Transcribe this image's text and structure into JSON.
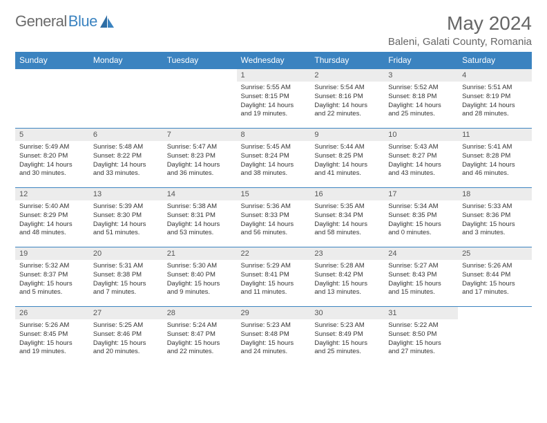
{
  "brand": {
    "name1": "General",
    "name2": "Blue"
  },
  "title": "May 2024",
  "location": "Baleni, Galati County, Romania",
  "colors": {
    "header_bg": "#3b83c0",
    "header_text": "#ffffff",
    "daynum_bg": "#ececec",
    "border": "#3b83c0",
    "text": "#333333",
    "muted": "#666666"
  },
  "day_labels": [
    "Sunday",
    "Monday",
    "Tuesday",
    "Wednesday",
    "Thursday",
    "Friday",
    "Saturday"
  ],
  "weeks": [
    [
      null,
      null,
      null,
      {
        "n": "1",
        "sr": "Sunrise: 5:55 AM",
        "ss": "Sunset: 8:15 PM",
        "d1": "Daylight: 14 hours",
        "d2": "and 19 minutes."
      },
      {
        "n": "2",
        "sr": "Sunrise: 5:54 AM",
        "ss": "Sunset: 8:16 PM",
        "d1": "Daylight: 14 hours",
        "d2": "and 22 minutes."
      },
      {
        "n": "3",
        "sr": "Sunrise: 5:52 AM",
        "ss": "Sunset: 8:18 PM",
        "d1": "Daylight: 14 hours",
        "d2": "and 25 minutes."
      },
      {
        "n": "4",
        "sr": "Sunrise: 5:51 AM",
        "ss": "Sunset: 8:19 PM",
        "d1": "Daylight: 14 hours",
        "d2": "and 28 minutes."
      }
    ],
    [
      {
        "n": "5",
        "sr": "Sunrise: 5:49 AM",
        "ss": "Sunset: 8:20 PM",
        "d1": "Daylight: 14 hours",
        "d2": "and 30 minutes."
      },
      {
        "n": "6",
        "sr": "Sunrise: 5:48 AM",
        "ss": "Sunset: 8:22 PM",
        "d1": "Daylight: 14 hours",
        "d2": "and 33 minutes."
      },
      {
        "n": "7",
        "sr": "Sunrise: 5:47 AM",
        "ss": "Sunset: 8:23 PM",
        "d1": "Daylight: 14 hours",
        "d2": "and 36 minutes."
      },
      {
        "n": "8",
        "sr": "Sunrise: 5:45 AM",
        "ss": "Sunset: 8:24 PM",
        "d1": "Daylight: 14 hours",
        "d2": "and 38 minutes."
      },
      {
        "n": "9",
        "sr": "Sunrise: 5:44 AM",
        "ss": "Sunset: 8:25 PM",
        "d1": "Daylight: 14 hours",
        "d2": "and 41 minutes."
      },
      {
        "n": "10",
        "sr": "Sunrise: 5:43 AM",
        "ss": "Sunset: 8:27 PM",
        "d1": "Daylight: 14 hours",
        "d2": "and 43 minutes."
      },
      {
        "n": "11",
        "sr": "Sunrise: 5:41 AM",
        "ss": "Sunset: 8:28 PM",
        "d1": "Daylight: 14 hours",
        "d2": "and 46 minutes."
      }
    ],
    [
      {
        "n": "12",
        "sr": "Sunrise: 5:40 AM",
        "ss": "Sunset: 8:29 PM",
        "d1": "Daylight: 14 hours",
        "d2": "and 48 minutes."
      },
      {
        "n": "13",
        "sr": "Sunrise: 5:39 AM",
        "ss": "Sunset: 8:30 PM",
        "d1": "Daylight: 14 hours",
        "d2": "and 51 minutes."
      },
      {
        "n": "14",
        "sr": "Sunrise: 5:38 AM",
        "ss": "Sunset: 8:31 PM",
        "d1": "Daylight: 14 hours",
        "d2": "and 53 minutes."
      },
      {
        "n": "15",
        "sr": "Sunrise: 5:36 AM",
        "ss": "Sunset: 8:33 PM",
        "d1": "Daylight: 14 hours",
        "d2": "and 56 minutes."
      },
      {
        "n": "16",
        "sr": "Sunrise: 5:35 AM",
        "ss": "Sunset: 8:34 PM",
        "d1": "Daylight: 14 hours",
        "d2": "and 58 minutes."
      },
      {
        "n": "17",
        "sr": "Sunrise: 5:34 AM",
        "ss": "Sunset: 8:35 PM",
        "d1": "Daylight: 15 hours",
        "d2": "and 0 minutes."
      },
      {
        "n": "18",
        "sr": "Sunrise: 5:33 AM",
        "ss": "Sunset: 8:36 PM",
        "d1": "Daylight: 15 hours",
        "d2": "and 3 minutes."
      }
    ],
    [
      {
        "n": "19",
        "sr": "Sunrise: 5:32 AM",
        "ss": "Sunset: 8:37 PM",
        "d1": "Daylight: 15 hours",
        "d2": "and 5 minutes."
      },
      {
        "n": "20",
        "sr": "Sunrise: 5:31 AM",
        "ss": "Sunset: 8:38 PM",
        "d1": "Daylight: 15 hours",
        "d2": "and 7 minutes."
      },
      {
        "n": "21",
        "sr": "Sunrise: 5:30 AM",
        "ss": "Sunset: 8:40 PM",
        "d1": "Daylight: 15 hours",
        "d2": "and 9 minutes."
      },
      {
        "n": "22",
        "sr": "Sunrise: 5:29 AM",
        "ss": "Sunset: 8:41 PM",
        "d1": "Daylight: 15 hours",
        "d2": "and 11 minutes."
      },
      {
        "n": "23",
        "sr": "Sunrise: 5:28 AM",
        "ss": "Sunset: 8:42 PM",
        "d1": "Daylight: 15 hours",
        "d2": "and 13 minutes."
      },
      {
        "n": "24",
        "sr": "Sunrise: 5:27 AM",
        "ss": "Sunset: 8:43 PM",
        "d1": "Daylight: 15 hours",
        "d2": "and 15 minutes."
      },
      {
        "n": "25",
        "sr": "Sunrise: 5:26 AM",
        "ss": "Sunset: 8:44 PM",
        "d1": "Daylight: 15 hours",
        "d2": "and 17 minutes."
      }
    ],
    [
      {
        "n": "26",
        "sr": "Sunrise: 5:26 AM",
        "ss": "Sunset: 8:45 PM",
        "d1": "Daylight: 15 hours",
        "d2": "and 19 minutes."
      },
      {
        "n": "27",
        "sr": "Sunrise: 5:25 AM",
        "ss": "Sunset: 8:46 PM",
        "d1": "Daylight: 15 hours",
        "d2": "and 20 minutes."
      },
      {
        "n": "28",
        "sr": "Sunrise: 5:24 AM",
        "ss": "Sunset: 8:47 PM",
        "d1": "Daylight: 15 hours",
        "d2": "and 22 minutes."
      },
      {
        "n": "29",
        "sr": "Sunrise: 5:23 AM",
        "ss": "Sunset: 8:48 PM",
        "d1": "Daylight: 15 hours",
        "d2": "and 24 minutes."
      },
      {
        "n": "30",
        "sr": "Sunrise: 5:23 AM",
        "ss": "Sunset: 8:49 PM",
        "d1": "Daylight: 15 hours",
        "d2": "and 25 minutes."
      },
      {
        "n": "31",
        "sr": "Sunrise: 5:22 AM",
        "ss": "Sunset: 8:50 PM",
        "d1": "Daylight: 15 hours",
        "d2": "and 27 minutes."
      },
      null
    ]
  ]
}
